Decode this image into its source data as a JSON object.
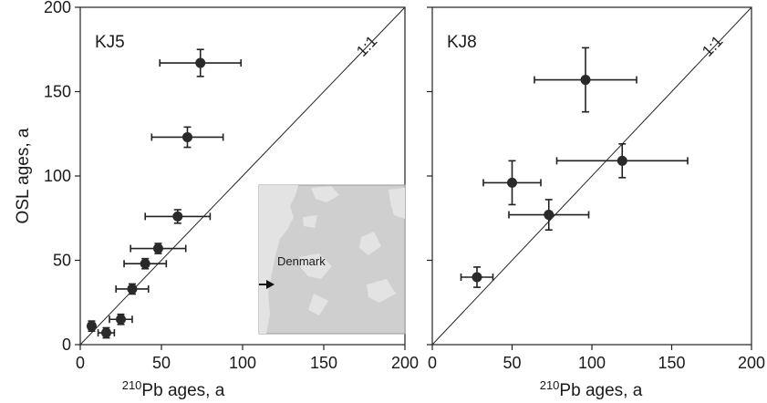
{
  "chart_data": [
    {
      "type": "scatter",
      "title": "KJ5",
      "xlabel_sup": "210",
      "xlabel_rest": "Pb ages, a",
      "ylabel": "OSL ages, a",
      "xlim": [
        0,
        200
      ],
      "ylim": [
        0,
        200
      ],
      "x_ticks": [
        0,
        50,
        100,
        150,
        200
      ],
      "y_ticks": [
        0,
        50,
        100,
        150,
        200
      ],
      "reference_line": "1:1",
      "points": [
        {
          "x": 7,
          "y": 11,
          "x_err": 2,
          "y_err": 3
        },
        {
          "x": 16,
          "y": 7,
          "x_err": 5,
          "y_err": 3
        },
        {
          "x": 25,
          "y": 15,
          "x_err": 7,
          "y_err": 3
        },
        {
          "x": 32,
          "y": 33,
          "x_err": 10,
          "y_err": 3
        },
        {
          "x": 40,
          "y": 48,
          "x_err": 13,
          "y_err": 3
        },
        {
          "x": 48,
          "y": 57,
          "x_err": 17,
          "y_err": 3
        },
        {
          "x": 60,
          "y": 76,
          "x_err": 20,
          "y_err": 4
        },
        {
          "x": 66,
          "y": 123,
          "x_err": 22,
          "y_err": 6
        },
        {
          "x": 74,
          "y": 167,
          "x_err": 25,
          "y_err": 8
        }
      ],
      "inset": {
        "label": "Denmark"
      }
    },
    {
      "type": "scatter",
      "title": "KJ8",
      "xlabel_sup": "210",
      "xlabel_rest": "Pb ages, a",
      "ylabel": "",
      "xlim": [
        0,
        200
      ],
      "ylim": [
        0,
        200
      ],
      "x_ticks": [
        0,
        50,
        100,
        150,
        200
      ],
      "y_ticks": [
        0,
        50,
        100,
        150,
        200
      ],
      "reference_line": "1:1",
      "points": [
        {
          "x": 28,
          "y": 40,
          "x_err": 10,
          "y_err": 6
        },
        {
          "x": 50,
          "y": 96,
          "x_err": 18,
          "y_err": 13
        },
        {
          "x": 73,
          "y": 77,
          "x_err": 25,
          "y_err": 9
        },
        {
          "x": 96,
          "y": 157,
          "x_err": 32,
          "y_err": 19
        },
        {
          "x": 119,
          "y": 109,
          "x_err": 41,
          "y_err": 10
        }
      ]
    }
  ]
}
